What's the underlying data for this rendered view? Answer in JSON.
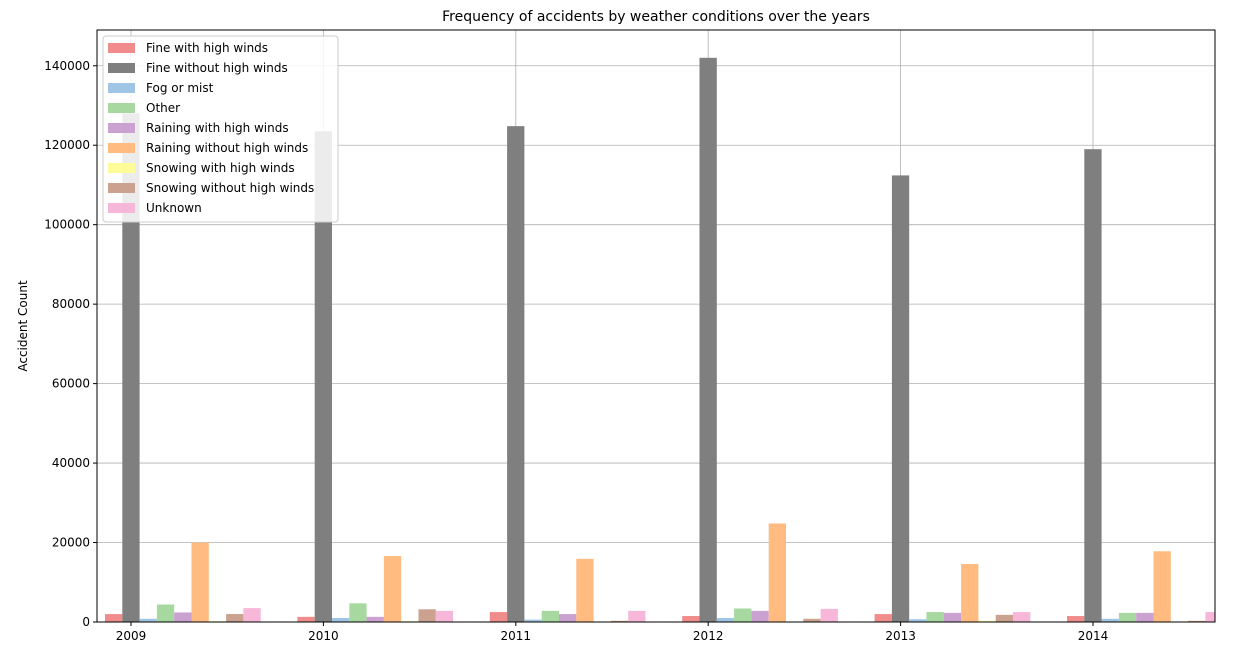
{
  "chart_data": {
    "type": "bar",
    "title": "Frequency of accidents by weather conditions over the years",
    "xlabel": "",
    "ylabel": "Accident Count",
    "categories": [
      "2009",
      "2010",
      "2011",
      "2012",
      "2013",
      "2014"
    ],
    "ylim": [
      0,
      149000
    ],
    "yticks": [
      0,
      20000,
      40000,
      60000,
      80000,
      100000,
      120000,
      140000
    ],
    "grid": true,
    "legend_position": "top-left",
    "series": [
      {
        "name": "Fine with high winds",
        "color": "#f18c8d",
        "values": [
          2000,
          1300,
          2500,
          1500,
          2000,
          1500
        ]
      },
      {
        "name": "Fine without high winds",
        "color": "#7f7f7f",
        "values": [
          128000,
          123500,
          124800,
          142000,
          112400,
          119000
        ]
      },
      {
        "name": "Fog or mist",
        "color": "#a0c4e3",
        "values": [
          800,
          1000,
          600,
          1000,
          700,
          800
        ]
      },
      {
        "name": "Other",
        "color": "#a6d8a0",
        "values": [
          4400,
          4700,
          2800,
          3400,
          2500,
          2300
        ]
      },
      {
        "name": "Raining with high winds",
        "color": "#cba1d2",
        "values": [
          2400,
          1300,
          2000,
          2800,
          2300,
          2300
        ]
      },
      {
        "name": "Raining without high winds",
        "color": "#ffbb80",
        "values": [
          20000,
          16600,
          15900,
          24800,
          14600,
          17800
        ]
      },
      {
        "name": "Snowing with high winds",
        "color": "#fdfc98",
        "values": [
          200,
          200,
          100,
          100,
          300,
          100
        ]
      },
      {
        "name": "Snowing without high winds",
        "color": "#caa28f",
        "values": [
          2000,
          3200,
          300,
          800,
          1800,
          300
        ]
      },
      {
        "name": "Unknown",
        "color": "#f7b7d8",
        "values": [
          3500,
          2800,
          2800,
          3300,
          2500,
          2500
        ]
      }
    ]
  }
}
